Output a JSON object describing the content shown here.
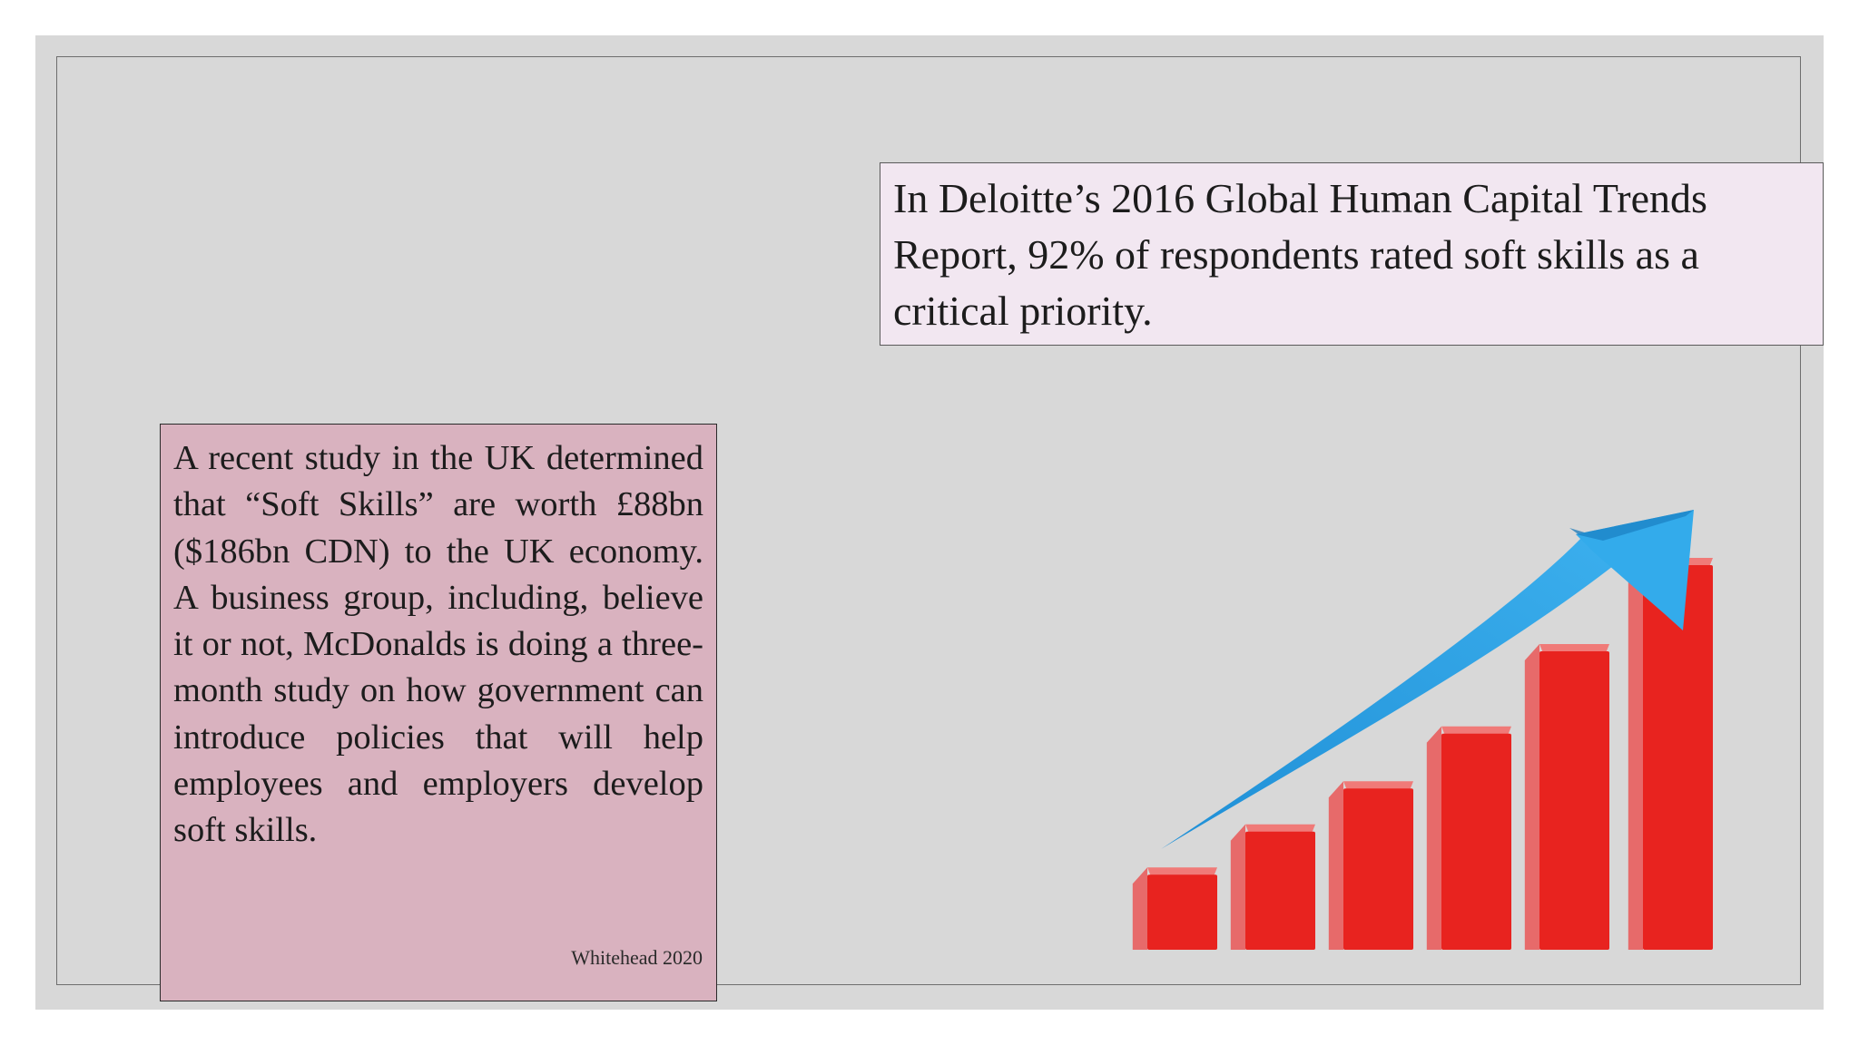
{
  "slide": {
    "callout": "In Deloitte’s 2016 Global Human Capital Trends Report, 92% of respondents rated soft skills as a critical priority.",
    "study": {
      "text": "A recent study in the UK determined that “Soft Skills” are worth £88bn ($186bn CDN) to the UK economy. A business group, including, believe it or not, McDonalds is doing a three-month study on how government can introduce policies that will help employees and employers develop soft skills.",
      "citation": "Whitehead 2020"
    },
    "illustration": {
      "icon": "growth-bar-chart-with-upward-arrow-icon",
      "bar_levels": [
        0.21,
        0.32,
        0.43,
        0.57,
        0.78,
        1.0
      ],
      "bar_color": "#e8231f",
      "arrow_color": "#2ea3e3"
    },
    "colors": {
      "slide_background": "#d8d8d8",
      "callout_background": "#f2e7f1",
      "study_background": "#d9b2bf"
    }
  }
}
